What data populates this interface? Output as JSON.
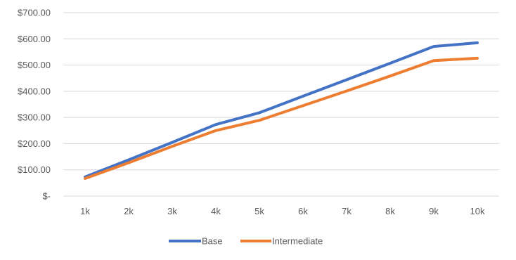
{
  "chart_data": {
    "type": "line",
    "title": "",
    "xlabel": "",
    "ylabel": "",
    "categories": [
      "1k",
      "2k",
      "3k",
      "4k",
      "5k",
      "6k",
      "7k",
      "8k",
      "9k",
      "10k"
    ],
    "ylim": [
      0,
      700
    ],
    "yticks": [
      0,
      100,
      200,
      300,
      400,
      500,
      600,
      700
    ],
    "ytick_labels": [
      "$-",
      "$100.00",
      "$200.00",
      "$300.00",
      "$400.00",
      "$500.00",
      "$600.00",
      "$700.00"
    ],
    "grid": true,
    "legend_position": "bottom",
    "series": [
      {
        "name": "Base",
        "color": "#4472C4",
        "values": [
          73,
          138,
          205,
          273,
          318,
          381,
          444,
          507,
          571,
          585
        ]
      },
      {
        "name": "Intermediate",
        "color": "#ED7D31",
        "values": [
          67,
          127,
          190,
          250,
          289,
          345,
          401,
          458,
          517,
          526
        ]
      }
    ]
  }
}
